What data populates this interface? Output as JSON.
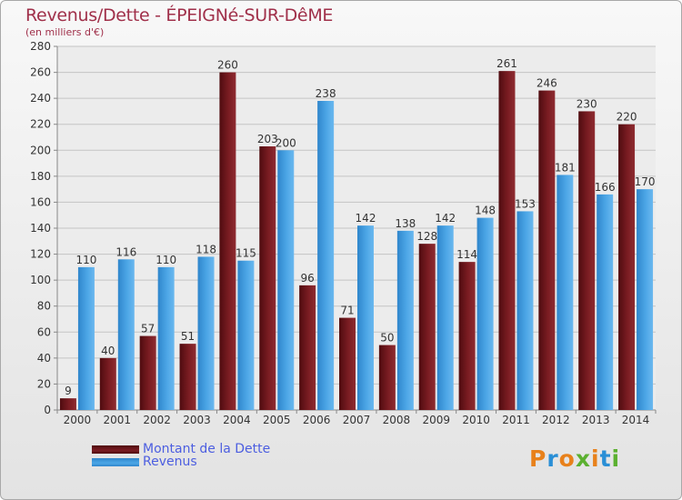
{
  "header": {
    "title": "Revenus/Dette - ÉPEIGNé-SUR-DêME",
    "subtitle": "(en milliers d'€)"
  },
  "colors": {
    "dette": "#7a1c22",
    "revenus": "#4ca6e6",
    "title": "#a0304a",
    "legend_text": "#4c5ee0"
  },
  "legend": {
    "dette_label": "Montant de la Dette",
    "revenus_label": "Revenus"
  },
  "logo": {
    "text": "Proxiti"
  },
  "chart_data": {
    "type": "bar",
    "title": "Revenus/Dette - ÉPEIGNé-SUR-DêME",
    "subtitle": "(en milliers d'€)",
    "categories": [
      "2000",
      "2001",
      "2002",
      "2003",
      "2004",
      "2005",
      "2006",
      "2007",
      "2008",
      "2009",
      "2010",
      "2011",
      "2012",
      "2013",
      "2014"
    ],
    "series": [
      {
        "name": "Montant de la Dette",
        "values": [
          9,
          40,
          57,
          51,
          260,
          203,
          96,
          71,
          50,
          128,
          114,
          261,
          246,
          230,
          220
        ]
      },
      {
        "name": "Revenus",
        "values": [
          110,
          116,
          110,
          118,
          115,
          200,
          238,
          142,
          138,
          142,
          148,
          153,
          181,
          166,
          170
        ]
      }
    ],
    "ylim": [
      0,
      280
    ],
    "yticks": [
      0,
      20,
      40,
      60,
      80,
      100,
      120,
      140,
      160,
      180,
      200,
      220,
      240,
      260,
      280
    ],
    "grid": true,
    "legend_position": "bottom-left"
  }
}
